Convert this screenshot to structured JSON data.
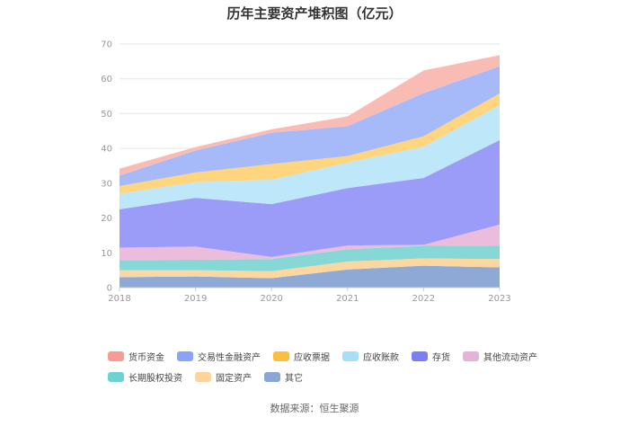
{
  "chart_data": {
    "type": "area",
    "stacked": true,
    "title": "历年主要资产堆积图（亿元）",
    "x": [
      "2018",
      "2019",
      "2020",
      "2021",
      "2022",
      "2023"
    ],
    "ylim": [
      0,
      70
    ],
    "yticks": [
      0,
      10,
      20,
      30,
      40,
      50,
      60,
      70
    ],
    "legend_position": "bottom",
    "series": [
      {
        "name": "其它",
        "color": "#8fa9d6",
        "values": [
          3.0,
          3.2,
          2.7,
          5.2,
          6.3,
          5.8
        ]
      },
      {
        "name": "固定资产",
        "color": "#fcd8a0",
        "values": [
          2.0,
          1.8,
          2.0,
          2.3,
          2.1,
          2.4
        ]
      },
      {
        "name": "长期股权投资",
        "color": "#86d8d6",
        "values": [
          2.9,
          3.0,
          3.5,
          3.5,
          3.6,
          3.9
        ]
      },
      {
        "name": "其他流动资产",
        "color": "#ecbcdc",
        "values": [
          3.6,
          3.8,
          0.6,
          1.1,
          0.3,
          6.0
        ]
      },
      {
        "name": "存货",
        "color": "#9a9cf7",
        "values": [
          11.0,
          14.0,
          15.2,
          16.5,
          19.2,
          24.3
        ]
      },
      {
        "name": "应收账款",
        "color": "#bfe7fa",
        "values": [
          4.5,
          4.5,
          7.0,
          7.3,
          9.0,
          10.0
        ]
      },
      {
        "name": "应收票据",
        "color": "#ffd57f",
        "values": [
          2.2,
          2.8,
          4.5,
          1.9,
          3.0,
          3.4
        ]
      },
      {
        "name": "交易性金融资产",
        "color": "#a6b9f9",
        "values": [
          3.0,
          6.3,
          9.0,
          8.6,
          12.4,
          7.8
        ]
      },
      {
        "name": "货币资金",
        "color": "#f9bcb5",
        "values": [
          2.0,
          1.0,
          1.0,
          2.8,
          6.5,
          3.2
        ]
      }
    ]
  },
  "legend": [
    {
      "name": "货币资金",
      "color": "#f79c91"
    },
    {
      "name": "交易性金融资产",
      "color": "#8aa2f8"
    },
    {
      "name": "应收票据",
      "color": "#fbbf3c"
    },
    {
      "name": "应收账款",
      "color": "#a6dff8"
    },
    {
      "name": "存货",
      "color": "#7c7ef5"
    },
    {
      "name": "其他流动资产",
      "color": "#e6b2d8"
    },
    {
      "name": "长期股权投资",
      "color": "#6dd2d0"
    },
    {
      "name": "固定资产",
      "color": "#fdd49a"
    },
    {
      "name": "其它",
      "color": "#8aa6d6"
    }
  ],
  "source_note": "数据来源：恒生聚源"
}
